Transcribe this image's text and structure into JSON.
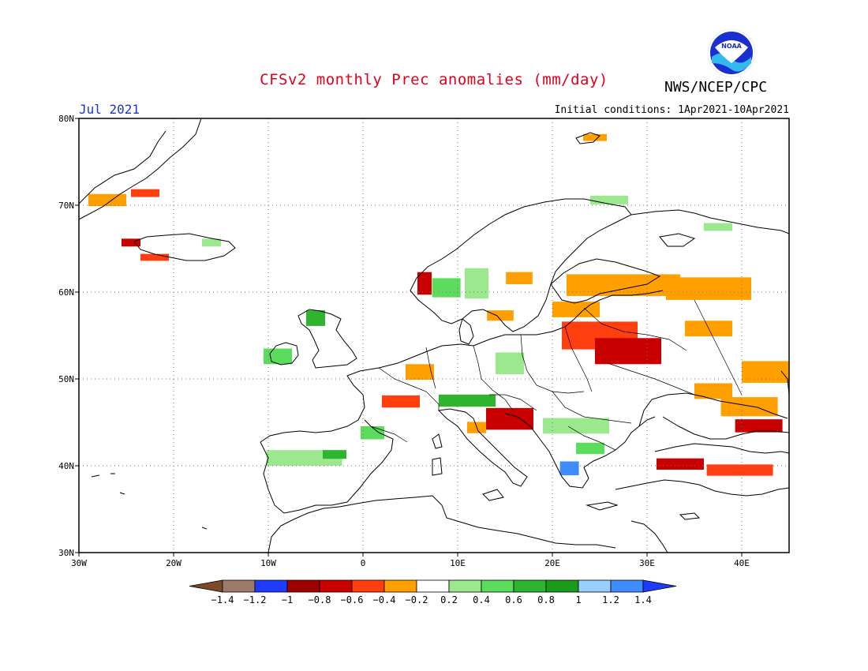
{
  "header": {
    "title": "CFSv2 monthly Prec anomalies (mm/day)",
    "org": "NWS/NCEP/CPC",
    "month": "Jul 2021",
    "initial_conditions": "Initial conditions: 1Apr2021-10Apr2021",
    "logo_text": "NOAA"
  },
  "map": {
    "lon_range": [
      -30,
      45
    ],
    "lat_range": [
      30,
      80
    ],
    "lon_ticks": [
      {
        "value": -30,
        "label": "30W"
      },
      {
        "value": -20,
        "label": "20W"
      },
      {
        "value": -10,
        "label": "10W"
      },
      {
        "value": 0,
        "label": "0"
      },
      {
        "value": 10,
        "label": "10E"
      },
      {
        "value": 20,
        "label": "20E"
      },
      {
        "value": 30,
        "label": "30E"
      },
      {
        "value": 40,
        "label": "40E"
      }
    ],
    "lat_ticks": [
      {
        "value": 30,
        "label": "30N"
      },
      {
        "value": 40,
        "label": "40N"
      },
      {
        "value": 50,
        "label": "50N"
      },
      {
        "value": 60,
        "label": "60N"
      },
      {
        "value": 70,
        "label": "70N"
      },
      {
        "value": 80,
        "label": "80N"
      }
    ],
    "gridlines": true
  },
  "colorbar": {
    "labels": [
      "-1.4",
      "-1.2",
      "-1",
      "-0.8",
      "-0.6",
      "-0.4",
      "-0.2",
      "0.2",
      "0.4",
      "0.6",
      "0.8",
      "1",
      "1.2",
      "1.4"
    ],
    "colors": [
      "#7b4a2a",
      "#9e7a6a",
      "#1e3cff",
      "#9e0000",
      "#c80000",
      "#ff3f10",
      "#ff9f00",
      "#ffffff",
      "#9be88e",
      "#5cdc5c",
      "#2fb42f",
      "#1a9c1a",
      "#9ad0ff",
      "#3f8cff",
      "#1e3cff"
    ]
  },
  "anomalies": [
    {
      "lon": -27,
      "lat": 70.6,
      "w": 4,
      "h": 1.4,
      "color": "#ff9f00"
    },
    {
      "lon": -23,
      "lat": 71.4,
      "w": 3,
      "h": 0.9,
      "color": "#ff3f10"
    },
    {
      "lon": -24.5,
      "lat": 65.7,
      "w": 2,
      "h": 0.9,
      "color": "#c80000"
    },
    {
      "lon": -22,
      "lat": 64.0,
      "w": 3,
      "h": 0.8,
      "color": "#ff3f10"
    },
    {
      "lon": -16,
      "lat": 65.7,
      "w": 2,
      "h": 0.9,
      "color": "#9be88e"
    },
    {
      "lon": -9,
      "lat": 52.6,
      "w": 3,
      "h": 1.8,
      "color": "#5cdc5c"
    },
    {
      "lon": -5,
      "lat": 57.0,
      "w": 2,
      "h": 1.8,
      "color": "#2fb42f"
    },
    {
      "lon": -6.2,
      "lat": 40.9,
      "w": 8,
      "h": 1.8,
      "color": "#9be88e"
    },
    {
      "lon": -3,
      "lat": 41.3,
      "w": 2.5,
      "h": 1.0,
      "color": "#2fb42f"
    },
    {
      "lon": 1,
      "lat": 43.8,
      "w": 2.5,
      "h": 1.5,
      "color": "#5cdc5c"
    },
    {
      "lon": 4,
      "lat": 47.4,
      "w": 4,
      "h": 1.4,
      "color": "#ff3f10"
    },
    {
      "lon": 6,
      "lat": 50.8,
      "w": 3,
      "h": 1.8,
      "color": "#ff9f00"
    },
    {
      "lon": 11,
      "lat": 47.5,
      "w": 6,
      "h": 1.4,
      "color": "#2fb42f"
    },
    {
      "lon": 15.5,
      "lat": 45.4,
      "w": 5,
      "h": 2.5,
      "color": "#c80000"
    },
    {
      "lon": 12,
      "lat": 44.4,
      "w": 2,
      "h": 1.3,
      "color": "#ff9f00"
    },
    {
      "lon": 22.5,
      "lat": 44.6,
      "w": 7,
      "h": 1.8,
      "color": "#9be88e"
    },
    {
      "lon": 24,
      "lat": 42.0,
      "w": 3,
      "h": 1.3,
      "color": "#5cdc5c"
    },
    {
      "lon": 21.8,
      "lat": 39.7,
      "w": 2,
      "h": 1.6,
      "color": "#3f8cff"
    },
    {
      "lon": 25,
      "lat": 55.0,
      "w": 8,
      "h": 3.2,
      "color": "#ff3f10"
    },
    {
      "lon": 28,
      "lat": 53.2,
      "w": 7,
      "h": 3.0,
      "color": "#c80000"
    },
    {
      "lon": 22.5,
      "lat": 58.0,
      "w": 5,
      "h": 1.8,
      "color": "#ff9f00"
    },
    {
      "lon": 27.5,
      "lat": 60.8,
      "w": 12,
      "h": 2.5,
      "color": "#ff9f00"
    },
    {
      "lon": 36.5,
      "lat": 60.4,
      "w": 9,
      "h": 2.6,
      "color": "#ff9f00"
    },
    {
      "lon": 36.5,
      "lat": 55.8,
      "w": 5,
      "h": 1.8,
      "color": "#ff9f00"
    },
    {
      "lon": 42.5,
      "lat": 50.8,
      "w": 5,
      "h": 2.5,
      "color": "#ff9f00"
    },
    {
      "lon": 40.8,
      "lat": 46.8,
      "w": 6,
      "h": 2.2,
      "color": "#ff9f00"
    },
    {
      "lon": 41.8,
      "lat": 44.6,
      "w": 5,
      "h": 1.5,
      "color": "#c80000"
    },
    {
      "lon": 33.5,
      "lat": 40.2,
      "w": 5,
      "h": 1.3,
      "color": "#c80000"
    },
    {
      "lon": 39.8,
      "lat": 39.5,
      "w": 7,
      "h": 1.3,
      "color": "#ff3f10"
    },
    {
      "lon": 37,
      "lat": 48.6,
      "w": 4,
      "h": 1.8,
      "color": "#ff9f00"
    },
    {
      "lon": 12,
      "lat": 61.0,
      "w": 2.5,
      "h": 3.5,
      "color": "#9be88e"
    },
    {
      "lon": 8.8,
      "lat": 60.5,
      "w": 3,
      "h": 2.2,
      "color": "#5cdc5c"
    },
    {
      "lon": 6.5,
      "lat": 61.0,
      "w": 1.5,
      "h": 2.6,
      "color": "#c80000"
    },
    {
      "lon": 15.5,
      "lat": 51.8,
      "w": 3,
      "h": 2.5,
      "color": "#9be88e"
    },
    {
      "lon": 26,
      "lat": 70.6,
      "w": 4,
      "h": 1.0,
      "color": "#9be88e"
    },
    {
      "lon": 37.5,
      "lat": 67.5,
      "w": 3,
      "h": 0.9,
      "color": "#9be88e"
    },
    {
      "lon": 24.5,
      "lat": 77.8,
      "w": 2.5,
      "h": 0.8,
      "color": "#ff9f00"
    },
    {
      "lon": 16.5,
      "lat": 61.6,
      "w": 2.8,
      "h": 1.4,
      "color": "#ff9f00"
    },
    {
      "lon": 14.5,
      "lat": 57.3,
      "w": 2.8,
      "h": 1.2,
      "color": "#ff9f00"
    }
  ]
}
